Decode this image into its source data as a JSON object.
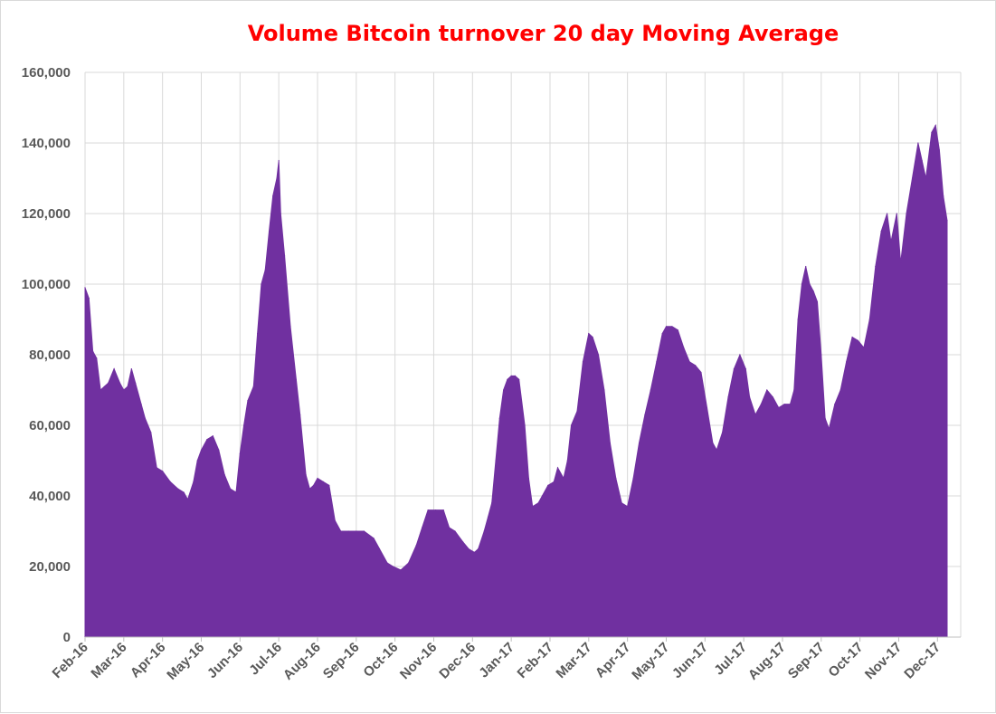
{
  "chart_data": {
    "type": "area",
    "title": "Volume Bitcoin turnover 20 day Moving Average",
    "xlabel": "",
    "ylabel": "",
    "ylim": [
      0,
      160000
    ],
    "y_ticks": [
      "0",
      "20,000",
      "40,000",
      "60,000",
      "80,000",
      "100,000",
      "120,000",
      "140,000",
      "160,000"
    ],
    "y_tick_values": [
      0,
      20000,
      40000,
      60000,
      80000,
      100000,
      120000,
      140000,
      160000
    ],
    "categories": [
      "Feb-16",
      "Mar-16",
      "Apr-16",
      "May-16",
      "Jun-16",
      "Jul-16",
      "Aug-16",
      "Sep-16",
      "Oct-16",
      "Nov-16",
      "Dec-16",
      "Jan-17",
      "Feb-17",
      "Mar-17",
      "Apr-17",
      "May-17",
      "Jun-17",
      "Jul-17",
      "Aug-17",
      "Sep-17",
      "Oct-17",
      "Nov-17",
      "Dec-17"
    ],
    "grid": "vertical and horizontal",
    "legend": "none",
    "series": [
      {
        "name": "",
        "color": "#7030a0",
        "points": [
          [
            0.0,
            99000
          ],
          [
            0.1,
            96000
          ],
          [
            0.2,
            81000
          ],
          [
            0.3,
            79000
          ],
          [
            0.4,
            70000
          ],
          [
            0.5,
            71000
          ],
          [
            0.6,
            72000
          ],
          [
            0.75,
            76000
          ],
          [
            0.9,
            72000
          ],
          [
            1.0,
            70000
          ],
          [
            1.1,
            71000
          ],
          [
            1.2,
            76000
          ],
          [
            1.3,
            72000
          ],
          [
            1.45,
            66000
          ],
          [
            1.55,
            62000
          ],
          [
            1.7,
            58000
          ],
          [
            1.85,
            48000
          ],
          [
            2.0,
            47000
          ],
          [
            2.2,
            44000
          ],
          [
            2.4,
            42000
          ],
          [
            2.55,
            41000
          ],
          [
            2.65,
            39000
          ],
          [
            2.8,
            44000
          ],
          [
            2.9,
            50000
          ],
          [
            3.0,
            53000
          ],
          [
            3.15,
            56000
          ],
          [
            3.3,
            57000
          ],
          [
            3.45,
            53000
          ],
          [
            3.6,
            46000
          ],
          [
            3.75,
            42000
          ],
          [
            3.9,
            41000
          ],
          [
            4.0,
            52000
          ],
          [
            4.1,
            60000
          ],
          [
            4.2,
            67000
          ],
          [
            4.35,
            71000
          ],
          [
            4.45,
            86000
          ],
          [
            4.55,
            100000
          ],
          [
            4.65,
            104000
          ],
          [
            4.75,
            115000
          ],
          [
            4.85,
            125000
          ],
          [
            4.95,
            130000
          ],
          [
            5.0,
            135000
          ],
          [
            5.05,
            120000
          ],
          [
            5.15,
            108000
          ],
          [
            5.3,
            88000
          ],
          [
            5.45,
            73000
          ],
          [
            5.55,
            63000
          ],
          [
            5.7,
            46000
          ],
          [
            5.8,
            42000
          ],
          [
            5.9,
            43000
          ],
          [
            6.0,
            45000
          ],
          [
            6.15,
            44000
          ],
          [
            6.3,
            43000
          ],
          [
            6.45,
            33000
          ],
          [
            6.6,
            30000
          ],
          [
            6.8,
            30000
          ],
          [
            7.0,
            30000
          ],
          [
            7.2,
            30000
          ],
          [
            7.45,
            28000
          ],
          [
            7.6,
            25000
          ],
          [
            7.8,
            21000
          ],
          [
            7.95,
            20000
          ],
          [
            8.15,
            19000
          ],
          [
            8.35,
            21000
          ],
          [
            8.55,
            26000
          ],
          [
            8.7,
            31000
          ],
          [
            8.85,
            36000
          ],
          [
            9.05,
            36000
          ],
          [
            9.25,
            36000
          ],
          [
            9.4,
            31000
          ],
          [
            9.55,
            30000
          ],
          [
            9.75,
            27000
          ],
          [
            9.9,
            25000
          ],
          [
            10.05,
            24000
          ],
          [
            10.15,
            25000
          ],
          [
            10.3,
            30000
          ],
          [
            10.4,
            34000
          ],
          [
            10.5,
            38000
          ],
          [
            10.6,
            50000
          ],
          [
            10.7,
            62000
          ],
          [
            10.8,
            70000
          ],
          [
            10.9,
            73000
          ],
          [
            11.0,
            74000
          ],
          [
            11.1,
            74000
          ],
          [
            11.2,
            73000
          ],
          [
            11.35,
            60000
          ],
          [
            11.45,
            45000
          ],
          [
            11.55,
            37000
          ],
          [
            11.7,
            38000
          ],
          [
            11.8,
            40000
          ],
          [
            11.95,
            43000
          ],
          [
            12.1,
            44000
          ],
          [
            12.2,
            48000
          ],
          [
            12.35,
            45000
          ],
          [
            12.45,
            50000
          ],
          [
            12.55,
            60000
          ],
          [
            12.7,
            64000
          ],
          [
            12.85,
            78000
          ],
          [
            13.0,
            86000
          ],
          [
            13.1,
            85000
          ],
          [
            13.25,
            80000
          ],
          [
            13.4,
            70000
          ],
          [
            13.55,
            55000
          ],
          [
            13.7,
            45000
          ],
          [
            13.85,
            38000
          ],
          [
            14.0,
            37000
          ],
          [
            14.15,
            45000
          ],
          [
            14.3,
            55000
          ],
          [
            14.45,
            63000
          ],
          [
            14.6,
            70000
          ],
          [
            14.75,
            78000
          ],
          [
            14.9,
            86000
          ],
          [
            15.0,
            88000
          ],
          [
            15.15,
            88000
          ],
          [
            15.3,
            87000
          ],
          [
            15.45,
            82000
          ],
          [
            15.6,
            78000
          ],
          [
            15.75,
            77000
          ],
          [
            15.9,
            75000
          ],
          [
            16.05,
            65000
          ],
          [
            16.2,
            55000
          ],
          [
            16.3,
            53000
          ],
          [
            16.45,
            58000
          ],
          [
            16.6,
            68000
          ],
          [
            16.75,
            76000
          ],
          [
            16.9,
            80000
          ],
          [
            17.05,
            76000
          ],
          [
            17.15,
            68000
          ],
          [
            17.3,
            63000
          ],
          [
            17.45,
            66000
          ],
          [
            17.6,
            70000
          ],
          [
            17.75,
            68000
          ],
          [
            17.9,
            65000
          ],
          [
            18.05,
            66000
          ],
          [
            18.2,
            66000
          ],
          [
            18.3,
            70000
          ],
          [
            18.4,
            90000
          ],
          [
            18.5,
            100000
          ],
          [
            18.6,
            105000
          ],
          [
            18.7,
            100000
          ],
          [
            18.8,
            98000
          ],
          [
            18.9,
            95000
          ],
          [
            19.0,
            80000
          ],
          [
            19.1,
            62000
          ],
          [
            19.2,
            59000
          ],
          [
            19.35,
            66000
          ],
          [
            19.5,
            70000
          ],
          [
            19.65,
            78000
          ],
          [
            19.8,
            85000
          ],
          [
            19.95,
            84000
          ],
          [
            20.1,
            82000
          ],
          [
            20.25,
            90000
          ],
          [
            20.4,
            105000
          ],
          [
            20.55,
            115000
          ],
          [
            20.7,
            120000
          ],
          [
            20.8,
            112000
          ],
          [
            20.95,
            120000
          ],
          [
            21.05,
            106000
          ],
          [
            21.2,
            120000
          ],
          [
            21.35,
            130000
          ],
          [
            21.5,
            140000
          ],
          [
            21.6,
            135000
          ],
          [
            21.7,
            130000
          ],
          [
            21.85,
            143000
          ],
          [
            21.95,
            145000
          ],
          [
            22.05,
            138000
          ],
          [
            22.15,
            125000
          ],
          [
            22.25,
            118000
          ]
        ]
      }
    ]
  }
}
